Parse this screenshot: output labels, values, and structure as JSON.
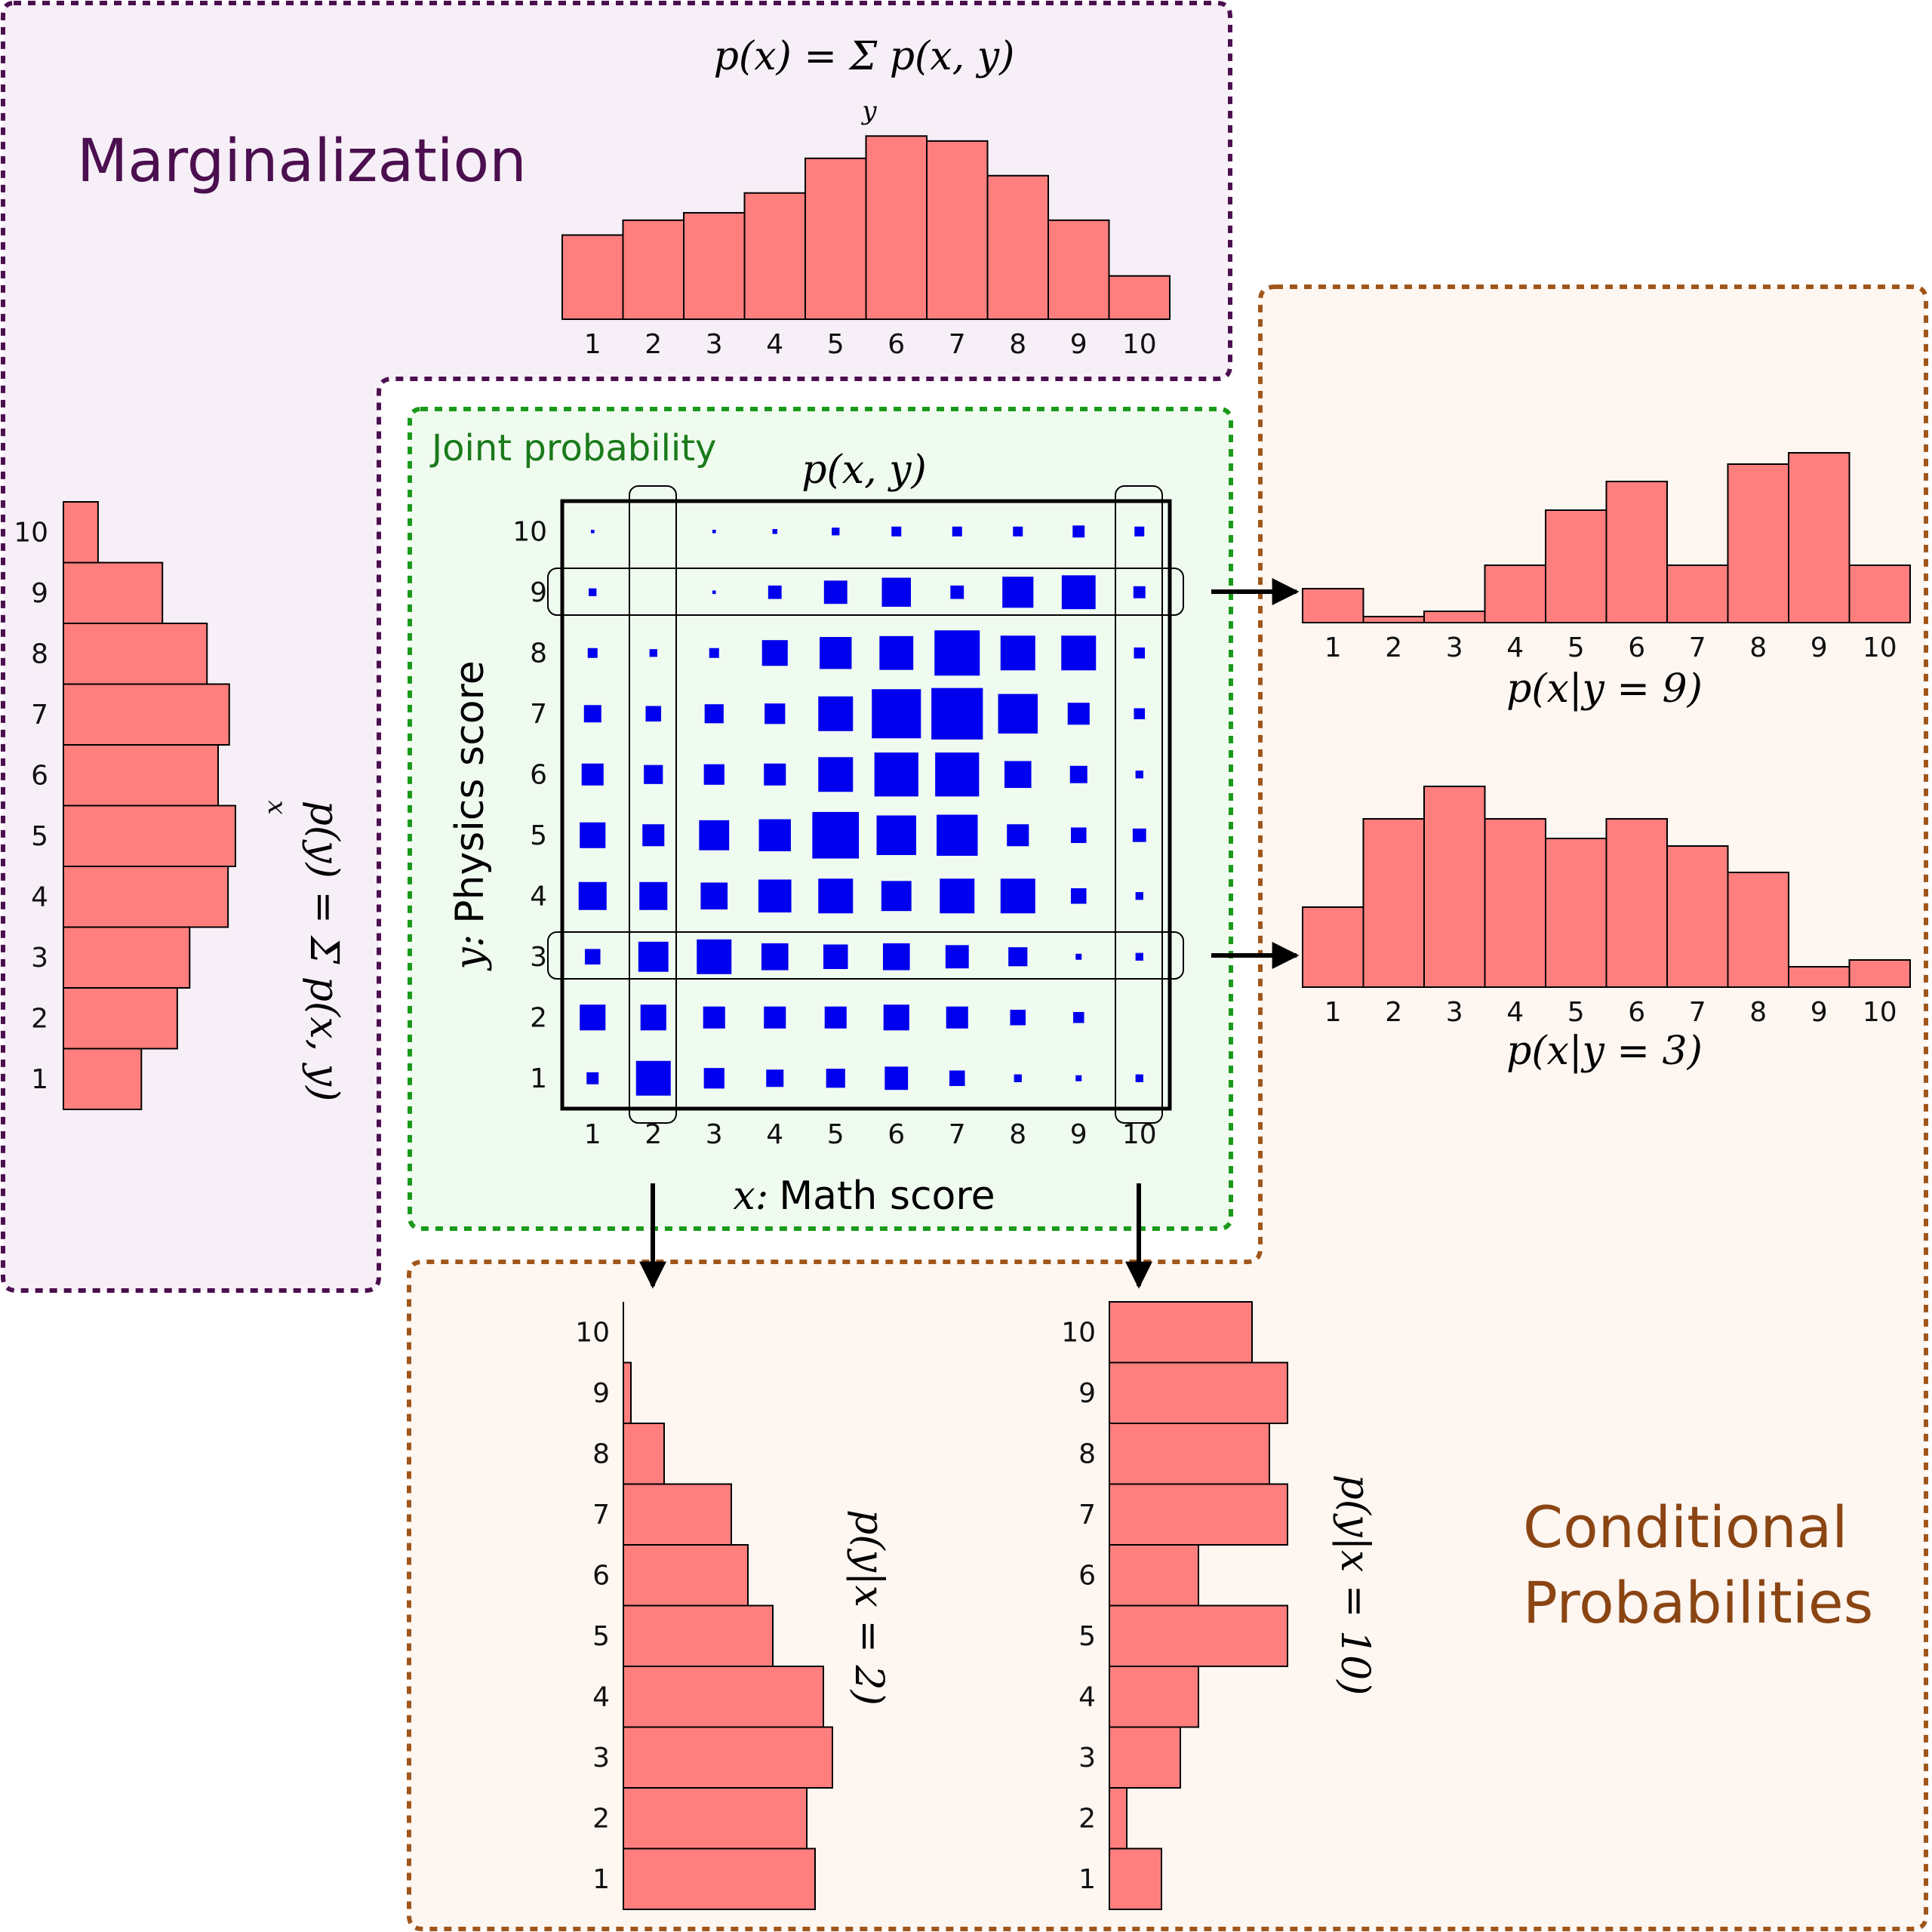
{
  "colors": {
    "bar_fill": "#ff7f7f",
    "square_fill": "#0000ee",
    "marginal_box_stroke": "#4b0f4f",
    "marginal_box_fill": "#f7eff7",
    "conditional_box_stroke": "#a0561a",
    "conditional_box_fill": "#fdf6f1",
    "joint_box_stroke": "#1a9a1a",
    "joint_box_fill": "#f0fbf0",
    "marginal_title": "#4b0f4f",
    "conditional_title": "#8b4513",
    "joint_title": "#1a7a1a"
  },
  "marginalization": {
    "title": "Marginalization",
    "px_formula": "p(x) = Σ p(x, y)",
    "px_formula_sub": "y",
    "py_formula": "p(y) = Σ p(x, y)",
    "py_formula_sub": "x"
  },
  "joint": {
    "title": "Joint probability",
    "formula": "p(x, y)",
    "xlabel_var": "x:",
    "xlabel_text": "Math score",
    "ylabel_var": "y:",
    "ylabel_text": "Physics score"
  },
  "conditional": {
    "title_line1": "Conditional",
    "title_line2": "Probabilities",
    "label_y9": "p(x|y = 9)",
    "label_y3": "p(x|y = 3)",
    "label_x2": "p(y|x = 2)",
    "label_x10": "p(y|x = 10)"
  },
  "chart_data": [
    {
      "type": "heatmap",
      "id": "joint",
      "x": [
        1,
        2,
        3,
        4,
        5,
        6,
        7,
        8,
        9,
        10
      ],
      "y": [
        1,
        2,
        3,
        4,
        5,
        6,
        7,
        8,
        9,
        10
      ],
      "values": [
        [
          0.12,
          1.0,
          0.35,
          0.25,
          0.3,
          0.45,
          0.2,
          0.05,
          0.03,
          0.05
        ],
        [
          0.55,
          0.55,
          0.4,
          0.4,
          0.4,
          0.55,
          0.4,
          0.2,
          0.1,
          0.0
        ],
        [
          0.2,
          0.75,
          1.0,
          0.6,
          0.5,
          0.6,
          0.45,
          0.3,
          0.03,
          0.05
        ],
        [
          0.65,
          0.65,
          0.6,
          0.9,
          1.0,
          0.75,
          1.0,
          1.0,
          0.2,
          0.05
        ],
        [
          0.55,
          0.4,
          0.75,
          0.85,
          1.8,
          1.3,
          1.4,
          0.4,
          0.2,
          0.15
        ],
        [
          0.4,
          0.3,
          0.35,
          0.4,
          1.0,
          1.6,
          1.6,
          0.6,
          0.25,
          0.05
        ],
        [
          0.25,
          0.2,
          0.3,
          0.35,
          1.0,
          2.0,
          2.2,
          1.3,
          0.4,
          0.1
        ],
        [
          0.08,
          0.05,
          0.08,
          0.55,
          0.85,
          0.95,
          1.7,
          1.0,
          1.0,
          0.1
        ],
        [
          0.05,
          0.0,
          0.01,
          0.15,
          0.45,
          0.7,
          0.15,
          0.8,
          0.95,
          0.12
        ],
        [
          0.01,
          0.0,
          0.01,
          0.02,
          0.05,
          0.08,
          0.08,
          0.08,
          0.12,
          0.08
        ]
      ]
    },
    {
      "type": "bar",
      "id": "px",
      "categories": [
        1,
        2,
        3,
        4,
        5,
        6,
        7,
        8,
        9,
        10
      ],
      "values": [
        68,
        80,
        86,
        102,
        130,
        148,
        144,
        116,
        80,
        35
      ]
    },
    {
      "type": "bar",
      "id": "py",
      "categories": [
        1,
        2,
        3,
        4,
        5,
        6,
        7,
        8,
        9,
        10
      ],
      "values": [
        63,
        92,
        102,
        133,
        139,
        125,
        134,
        116,
        80,
        28
      ]
    },
    {
      "type": "bar",
      "id": "px_given_y9",
      "categories": [
        1,
        2,
        3,
        4,
        5,
        6,
        7,
        8,
        9,
        10
      ],
      "values": [
        45,
        8,
        15,
        76,
        149,
        187,
        76,
        210,
        225,
        76
      ]
    },
    {
      "type": "bar",
      "id": "px_given_y3",
      "categories": [
        1,
        2,
        3,
        4,
        5,
        6,
        7,
        8,
        9,
        10
      ],
      "values": [
        106,
        223,
        266,
        223,
        197,
        223,
        187,
        152,
        27,
        36
      ]
    },
    {
      "type": "bar",
      "id": "py_given_x2",
      "categories": [
        1,
        2,
        3,
        4,
        5,
        6,
        7,
        8,
        9,
        10
      ],
      "values": [
        254,
        243,
        277,
        265,
        198,
        165,
        143,
        54,
        10,
        0
      ]
    },
    {
      "type": "bar",
      "id": "py_given_x10",
      "categories": [
        1,
        2,
        3,
        4,
        5,
        6,
        7,
        8,
        9,
        10
      ],
      "values": [
        69,
        23,
        94,
        118,
        236,
        118,
        236,
        212,
        236,
        189
      ]
    }
  ]
}
